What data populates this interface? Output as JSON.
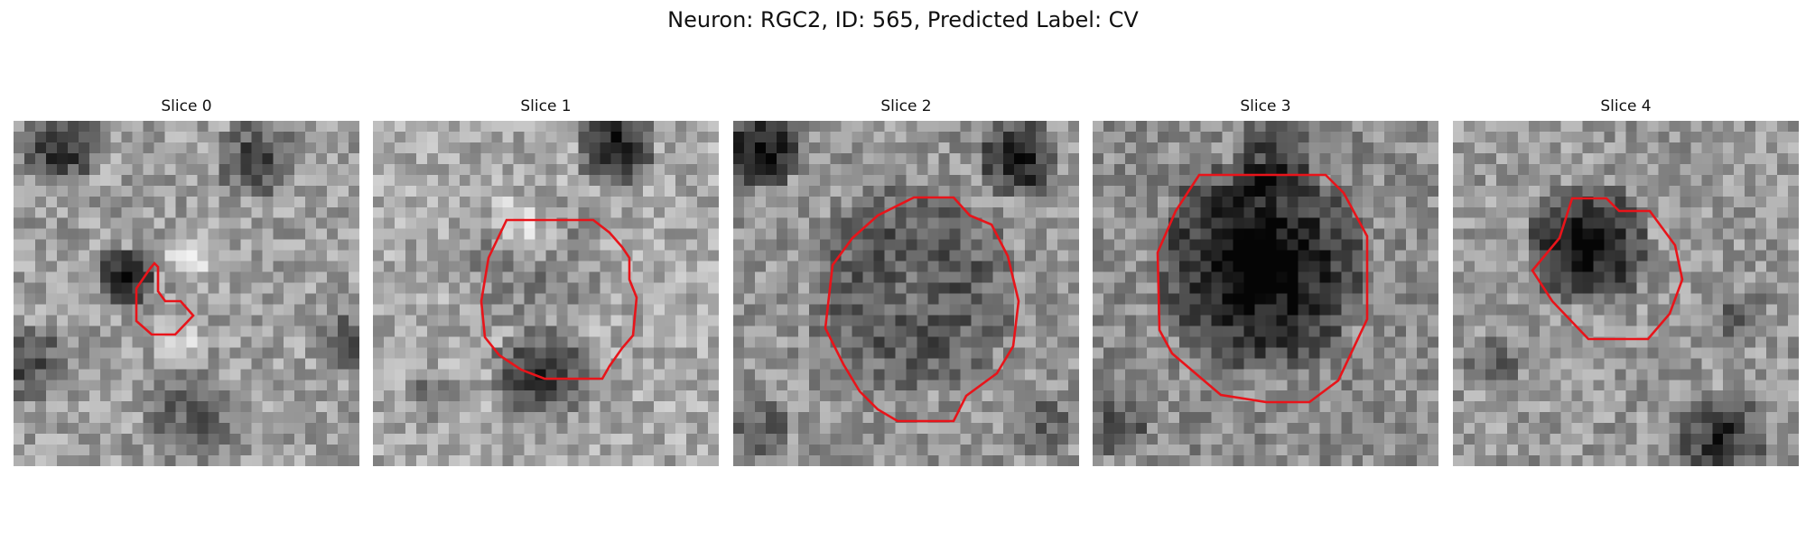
{
  "figure": {
    "title": "Neuron: RGC2, ID: 565, Predicted Label: CV",
    "contour_color": "#e8141a",
    "colormap": "gray",
    "grid_cells": 32,
    "slices": [
      {
        "label": "Slice 0",
        "cell": "small irregular dark blob, left of centre",
        "brightness_level": 0.62
      },
      {
        "label": "Slice 1",
        "cell": "rounded cell with bright nucleus",
        "brightness_level": 0.66
      },
      {
        "label": "Slice 2",
        "cell": "large round cell with mid-grey interior",
        "brightness_level": 0.58
      },
      {
        "label": "Slice 3",
        "cell": "large dark octagonal cell",
        "brightness_level": 0.55
      },
      {
        "label": "Slice 4",
        "cell": "dark octagonal cell, upper centre",
        "brightness_level": 0.6
      }
    ]
  }
}
